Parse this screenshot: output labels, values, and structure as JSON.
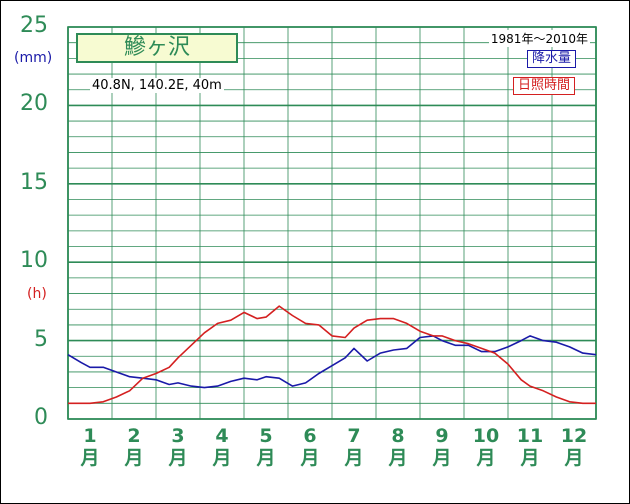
{
  "title": "鰺ヶ沢",
  "location": "40.8N,  140.2E,  40m",
  "period": "1981年～2010年",
  "legend": {
    "precipitation": "降水量",
    "sunshine": "日照時間"
  },
  "units": {
    "precipitation": "(mm)",
    "sunshine": "(h)"
  },
  "colors": {
    "precipitation": "#1a1aa8",
    "sunshine": "#d42020",
    "grid": "#2e8b57",
    "axis_text": "#2e8b57"
  },
  "chart_data": {
    "type": "line",
    "title": "鰺ヶ沢",
    "xlabel": "",
    "ylabel": "",
    "ylim": [
      0,
      25
    ],
    "y_ticks": [
      "0",
      "5",
      "10",
      "15",
      "20",
      "25"
    ],
    "categories": [
      {
        "num": "1",
        "unit": "月"
      },
      {
        "num": "2",
        "unit": "月"
      },
      {
        "num": "3",
        "unit": "月"
      },
      {
        "num": "4",
        "unit": "月"
      },
      {
        "num": "5",
        "unit": "月"
      },
      {
        "num": "6",
        "unit": "月"
      },
      {
        "num": "7",
        "unit": "月"
      },
      {
        "num": "8",
        "unit": "月"
      },
      {
        "num": "9",
        "unit": "月"
      },
      {
        "num": "10",
        "unit": "月"
      },
      {
        "num": "11",
        "unit": "月"
      },
      {
        "num": "12",
        "unit": "月"
      }
    ],
    "x_range": [
      0.5,
      12.5
    ],
    "grid": true,
    "series": [
      {
        "name": "降水量",
        "key": "precipitation",
        "x": [
          0.5,
          0.8,
          1.0,
          1.3,
          1.6,
          1.9,
          2.2,
          2.5,
          2.8,
          3.0,
          3.3,
          3.6,
          3.9,
          4.2,
          4.5,
          4.8,
          5.0,
          5.3,
          5.6,
          5.9,
          6.2,
          6.5,
          6.8,
          7.0,
          7.3,
          7.6,
          7.9,
          8.2,
          8.5,
          8.8,
          9.0,
          9.3,
          9.6,
          9.9,
          10.2,
          10.5,
          10.8,
          11.0,
          11.3,
          11.6,
          11.9,
          12.2,
          12.5
        ],
        "values": [
          4.1,
          3.6,
          3.3,
          3.3,
          3.0,
          2.7,
          2.6,
          2.5,
          2.2,
          2.3,
          2.1,
          2.0,
          2.1,
          2.4,
          2.6,
          2.5,
          2.7,
          2.6,
          2.1,
          2.3,
          2.9,
          3.4,
          3.9,
          4.5,
          3.7,
          4.2,
          4.4,
          4.5,
          5.2,
          5.3,
          5.0,
          4.7,
          4.7,
          4.3,
          4.3,
          4.6,
          5.0,
          5.3,
          5.0,
          4.9,
          4.6,
          4.2,
          4.1
        ]
      },
      {
        "name": "日照時間",
        "key": "sunshine",
        "x": [
          0.5,
          0.8,
          1.0,
          1.3,
          1.6,
          1.9,
          2.2,
          2.5,
          2.8,
          3.0,
          3.3,
          3.6,
          3.9,
          4.2,
          4.5,
          4.8,
          5.0,
          5.3,
          5.6,
          5.9,
          6.2,
          6.5,
          6.8,
          7.0,
          7.3,
          7.6,
          7.9,
          8.2,
          8.5,
          8.8,
          9.0,
          9.3,
          9.6,
          9.9,
          10.2,
          10.5,
          10.8,
          11.0,
          11.3,
          11.6,
          11.9,
          12.2,
          12.5
        ],
        "values": [
          1.0,
          1.0,
          1.0,
          1.1,
          1.4,
          1.8,
          2.6,
          2.9,
          3.3,
          3.9,
          4.7,
          5.5,
          6.1,
          6.3,
          6.8,
          6.4,
          6.5,
          7.2,
          6.6,
          6.1,
          6.0,
          5.3,
          5.2,
          5.8,
          6.3,
          6.4,
          6.4,
          6.1,
          5.6,
          5.3,
          5.3,
          5.0,
          4.8,
          4.5,
          4.2,
          3.5,
          2.5,
          2.1,
          1.8,
          1.4,
          1.1,
          1.0,
          1.0
        ]
      }
    ]
  }
}
